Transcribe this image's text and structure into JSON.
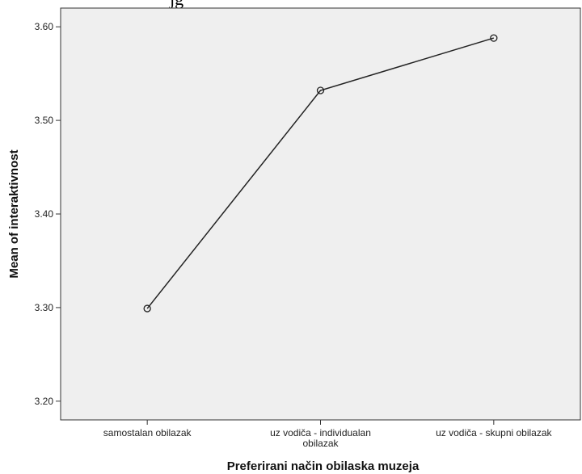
{
  "top_clipped_text": "jg",
  "chart_data": {
    "type": "line",
    "title": "",
    "xlabel": "Preferirani način obilaska muzeja",
    "ylabel": "Mean of interaktivnost",
    "categories": [
      [
        "samostalan obilazak"
      ],
      [
        "uz vodiča - individualan",
        "obilazak"
      ],
      [
        "uz vodiča - skupni obilazak"
      ]
    ],
    "series": [
      {
        "values": [
          3.299,
          3.532,
          3.588
        ]
      }
    ],
    "ylim": [
      3.18,
      3.62
    ],
    "yticks": [
      3.2,
      3.3,
      3.4,
      3.5,
      3.6
    ],
    "ytick_labels": [
      "3.20",
      "3.30",
      "3.40",
      "3.50",
      "3.60"
    ],
    "grid": false,
    "legend": "none",
    "colors": {
      "plot_background": "#efefef",
      "line": "#222222",
      "frame": "#333333"
    }
  }
}
